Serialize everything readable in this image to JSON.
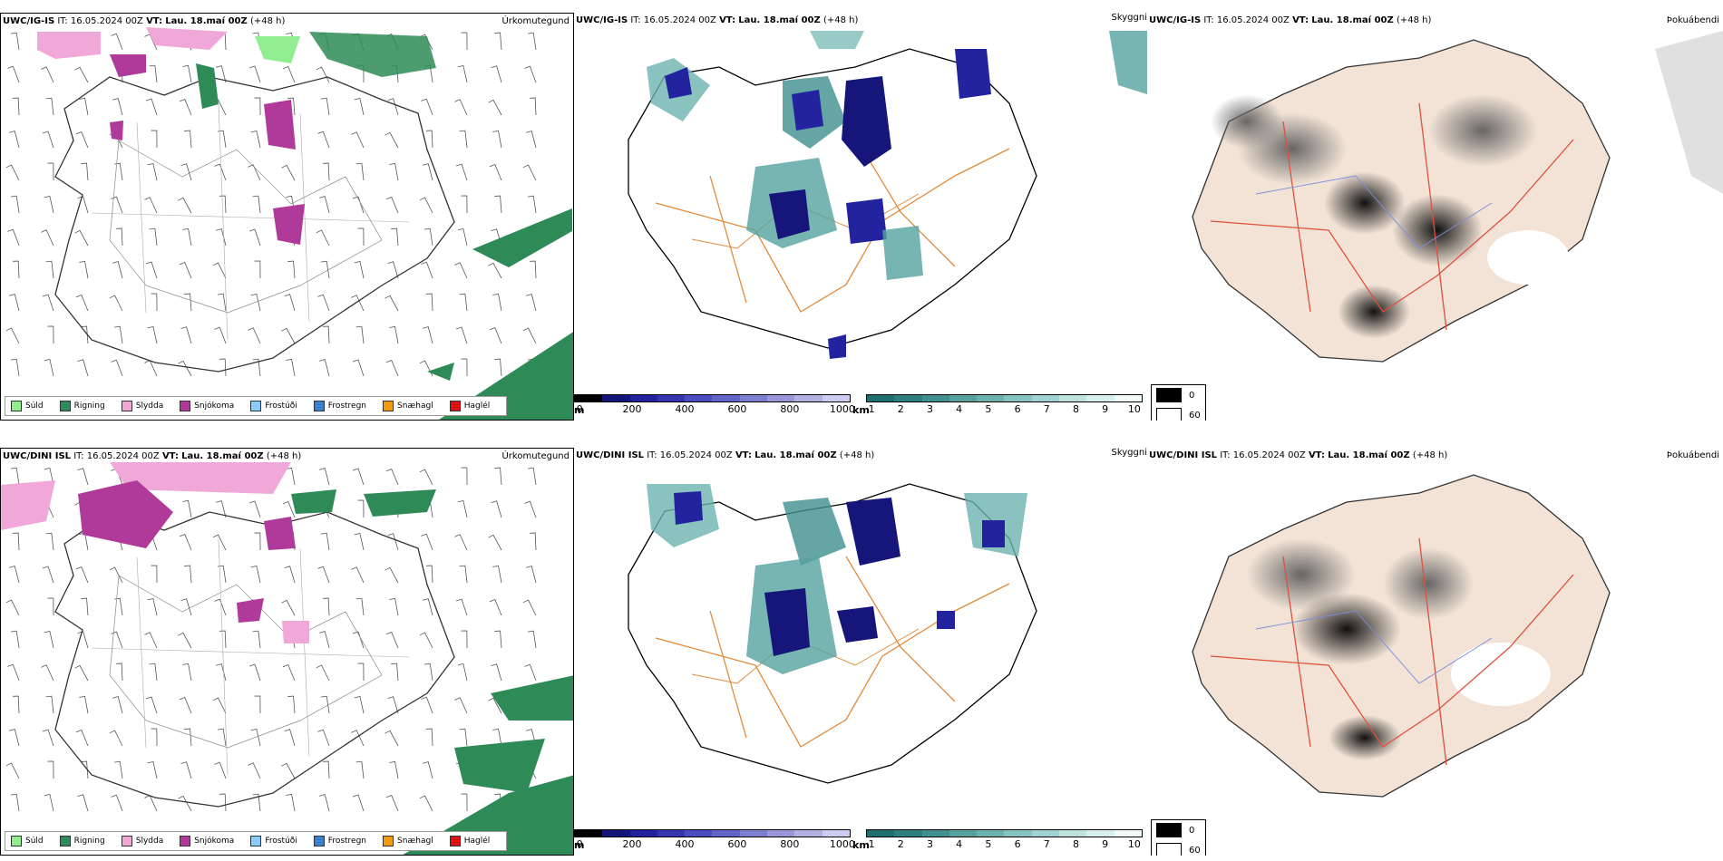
{
  "rows": [
    {
      "model": "UWC/IG-IS",
      "left": {
        "model": "UWC/IG-IS",
        "title": "Úrkomutegund"
      },
      "mid": {
        "model": "UWC/IG-IS",
        "title": "Skyggni"
      },
      "right": {
        "model": "UWC/IG-IS",
        "title": "Þokuábendi"
      }
    },
    {
      "model": "UWC/DINI ISL",
      "left": {
        "model": "UWC/DINI ISL",
        "title": "Úrkomutegund"
      },
      "mid": {
        "model": "UWC/DINI ISL",
        "title": "Skyggni"
      },
      "right": {
        "model": "UWC/DINI ISL",
        "title": "Þokuábendi"
      }
    }
  ],
  "header": {
    "it_label": "IT:",
    "it_value": "16.05.2024 00Z",
    "vt_label": "VT:",
    "vt_value": "Lau. 18.maí 00Z",
    "lead": "(+48 h)"
  },
  "precip_legend": [
    {
      "label": "Súld",
      "color": "#90ee90"
    },
    {
      "label": "Rigning",
      "color": "#2e8b57"
    },
    {
      "label": "Slydda",
      "color": "#f0a8d8"
    },
    {
      "label": "Snjókoma",
      "color": "#b03a9a"
    },
    {
      "label": "Frostúði",
      "color": "#87cefa"
    },
    {
      "label": "Frostregn",
      "color": "#3a7fd0"
    },
    {
      "label": "Snæhagl",
      "color": "#f39c12"
    },
    {
      "label": "Haglél",
      "color": "#e01010"
    }
  ],
  "ceiling_bar": {
    "unit": "m",
    "ticks": [
      "0",
      "200",
      "400",
      "600",
      "800",
      "1000"
    ],
    "colors": [
      "#000000",
      "#15157a",
      "#2323a0",
      "#3535b0",
      "#4c4cc0",
      "#6464c8",
      "#7e7ed0",
      "#9898d8",
      "#b2b2e2",
      "#cdcdef"
    ]
  },
  "vis_bar": {
    "unit": "km",
    "ticks": [
      "1",
      "2",
      "3",
      "4",
      "5",
      "6",
      "7",
      "8",
      "9",
      "10"
    ],
    "colors": [
      "#1f6f6f",
      "#2e807f",
      "#3f908e",
      "#55a29f",
      "#6cb3af",
      "#86c4c0",
      "#a1d4d0",
      "#bde3df",
      "#d8f0ed",
      "#f0faf9"
    ]
  },
  "fog_legend": [
    {
      "label": "0",
      "color": "#000000"
    },
    {
      "label": "60",
      "color": "#ffffff"
    }
  ],
  "icons": [
    "wind-barb-icon"
  ]
}
